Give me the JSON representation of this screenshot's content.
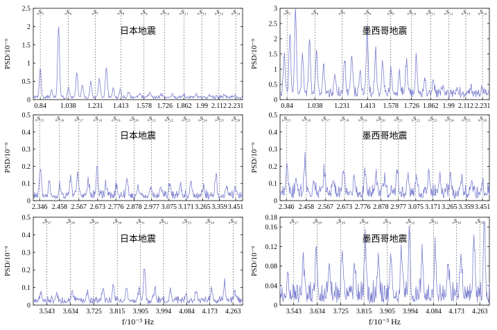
{
  "chart_data": [
    {
      "type": "line",
      "title": "日本地震",
      "ylabel": "PSD/10⁻⁹",
      "xlabel": "",
      "ylim": [
        0,
        2.5
      ],
      "yticks": [
        "0",
        "0.5",
        "1",
        "1.5",
        "2",
        "2.5"
      ],
      "xlim": [
        0.79,
        2.28
      ],
      "x_ticks": [
        0.84,
        1.038,
        1.231,
        1.413,
        1.578,
        1.726,
        1.862,
        1.99,
        2.112,
        2.231
      ],
      "x_tick_labels": [
        "0.84",
        "1.038",
        "1.231",
        "1.413",
        "1.578",
        "1.726",
        "1.862",
        "1.99",
        "2.112",
        "2.231"
      ],
      "modes": [
        "₀S₅",
        "₀S₆",
        "₀S₇",
        "₀S₈",
        "₀S₉",
        "₀S₁₀",
        "₀S₁₁",
        "₀S₁₂",
        "₀S₁₃",
        "₀S₁₄"
      ],
      "peaks": [
        [
          0.84,
          0.8
        ],
        [
          0.92,
          0.18
        ],
        [
          0.97,
          1.95
        ],
        [
          1.04,
          0.3
        ],
        [
          1.1,
          0.65
        ],
        [
          1.14,
          0.35
        ],
        [
          1.2,
          0.45
        ],
        [
          1.26,
          0.55
        ],
        [
          1.31,
          0.85
        ],
        [
          1.36,
          0.25
        ],
        [
          1.41,
          0.2
        ],
        [
          1.47,
          0.15
        ],
        [
          1.55,
          0.1
        ],
        [
          1.62,
          0.12
        ],
        [
          1.7,
          0.08
        ],
        [
          1.78,
          0.1
        ],
        [
          1.86,
          0.09
        ],
        [
          1.95,
          0.07
        ],
        [
          2.05,
          0.06
        ],
        [
          2.15,
          0.08
        ],
        [
          2.23,
          0.05
        ]
      ],
      "base": 0.05,
      "noise": 0.06
    },
    {
      "type": "line",
      "title": "墨西哥地震",
      "ylabel": "PSD/10⁻⁹",
      "xlabel": "",
      "ylim": [
        0,
        3
      ],
      "yticks": [
        "0",
        "0.5",
        "1",
        "1.5",
        "2",
        "2.5",
        "3"
      ],
      "xlim": [
        0.79,
        2.28
      ],
      "x_ticks": [
        0.84,
        1.038,
        1.231,
        1.413,
        1.578,
        1.726,
        1.862,
        1.99,
        2.112,
        2.231
      ],
      "x_tick_labels": [
        "0.84",
        "1.038",
        "1.231",
        "1.413",
        "1.578",
        "1.726",
        "1.862",
        "1.99",
        "2.112",
        "2.231"
      ],
      "modes": [
        "₀S₅",
        "₀S₆",
        "₀S₇",
        "₀S₈",
        "₀S₉",
        "₀S₁₀",
        "₀S₁₁",
        "₀S₁₂",
        "₀S₁₃",
        "₀S₁₄"
      ],
      "peaks": [
        [
          0.82,
          1.3
        ],
        [
          0.86,
          2.0
        ],
        [
          0.9,
          2.8
        ],
        [
          0.95,
          1.2
        ],
        [
          1.0,
          1.8
        ],
        [
          1.05,
          1.5
        ],
        [
          1.1,
          0.9
        ],
        [
          1.18,
          0.6
        ],
        [
          1.25,
          1.1
        ],
        [
          1.3,
          1.3
        ],
        [
          1.36,
          0.7
        ],
        [
          1.41,
          2.1
        ],
        [
          1.47,
          1.4
        ],
        [
          1.52,
          1.0
        ],
        [
          1.58,
          0.8
        ],
        [
          1.64,
          0.6
        ],
        [
          1.69,
          1.0
        ],
        [
          1.76,
          1.2
        ],
        [
          1.82,
          0.5
        ],
        [
          1.88,
          0.4
        ],
        [
          1.95,
          0.3
        ],
        [
          2.05,
          0.2
        ],
        [
          2.15,
          0.15
        ],
        [
          2.23,
          0.1
        ]
      ],
      "base": 0.15,
      "noise": 0.25
    },
    {
      "type": "line",
      "title": "日本地震",
      "ylabel": "PSD/10⁻⁹",
      "xlabel": "",
      "ylim": [
        0,
        0.5
      ],
      "yticks": [
        "0",
        "0.1",
        "0.2",
        "0.3",
        "0.4",
        "0.5"
      ],
      "xlim": [
        2.31,
        3.49
      ],
      "x_ticks": [
        2.346,
        2.458,
        2.567,
        2.673,
        2.776,
        2.878,
        2.977,
        3.075,
        3.171,
        3.265,
        3.359,
        3.451
      ],
      "x_tick_labels": [
        "2.346",
        "2.458",
        "2.567",
        "2.673",
        "2.776",
        "2.878",
        "2.977",
        "3.075",
        "3.171",
        "3.265",
        "3.359",
        "3.451"
      ],
      "modes": [
        "₀S₁₅",
        "₀S₁₆",
        "₀S₁₇",
        "₀S₁₈",
        "₀S₁₉",
        "₀S₂₀",
        "₀S₂₁",
        "₀S₂₂",
        "₀S₂₃",
        "₀S₂₄",
        "₀S₂₅",
        "₀S₂₆"
      ],
      "peaks": [
        [
          2.35,
          0.15
        ],
        [
          2.4,
          0.08
        ],
        [
          2.46,
          0.06
        ],
        [
          2.52,
          0.1
        ],
        [
          2.56,
          0.13
        ],
        [
          2.62,
          0.09
        ],
        [
          2.67,
          0.17
        ],
        [
          2.72,
          0.07
        ],
        [
          2.78,
          0.06
        ],
        [
          2.84,
          0.09
        ],
        [
          2.9,
          0.05
        ],
        [
          2.97,
          0.06
        ],
        [
          3.03,
          0.05
        ],
        [
          3.08,
          0.08
        ],
        [
          3.14,
          0.06
        ],
        [
          3.2,
          0.07
        ],
        [
          3.27,
          0.05
        ],
        [
          3.34,
          0.12
        ],
        [
          3.4,
          0.05
        ],
        [
          3.45,
          0.04
        ]
      ],
      "base": 0.02,
      "noise": 0.04
    },
    {
      "type": "line",
      "title": "墨西哥地震",
      "ylabel": "PSD/10⁻⁹",
      "xlabel": "",
      "ylim": [
        0,
        0.5
      ],
      "yticks": [
        "0",
        "0.1",
        "0.2",
        "0.3",
        "0.4",
        "0.5"
      ],
      "xlim": [
        2.31,
        3.49
      ],
      "x_ticks": [
        2.346,
        2.458,
        2.567,
        2.673,
        2.776,
        2.878,
        2.977,
        3.075,
        3.171,
        3.265,
        3.359,
        3.451
      ],
      "x_tick_labels": [
        "2.346",
        "2.458",
        "2.567",
        "2.673",
        "2.776",
        "2.878",
        "2.977",
        "3.075",
        "3.171",
        "3.265",
        "3.359",
        "3.451"
      ],
      "modes": [
        "₀S₁₅",
        "₀S₁₆",
        "₀S₁₇",
        "₀S₁₈",
        "₀S₁₉",
        "₀S₂₀",
        "₀S₂₁",
        "₀S₂₂",
        "₀S₂₃",
        "₀S₂₄",
        "₀S₂₅",
        "₀S₂₆"
      ],
      "peaks": [
        [
          2.35,
          0.17
        ],
        [
          2.4,
          0.1
        ],
        [
          2.45,
          0.18
        ],
        [
          2.5,
          0.09
        ],
        [
          2.56,
          0.12
        ],
        [
          2.61,
          0.1
        ],
        [
          2.67,
          0.14
        ],
        [
          2.73,
          0.08
        ],
        [
          2.79,
          0.11
        ],
        [
          2.85,
          0.1
        ],
        [
          2.9,
          0.08
        ],
        [
          2.97,
          0.12
        ],
        [
          3.03,
          0.09
        ],
        [
          3.08,
          0.1
        ],
        [
          3.15,
          0.13
        ],
        [
          3.21,
          0.08
        ],
        [
          3.27,
          0.11
        ],
        [
          3.33,
          0.09
        ],
        [
          3.39,
          0.08
        ],
        [
          3.45,
          0.07
        ]
      ],
      "base": 0.03,
      "noise": 0.07
    },
    {
      "type": "line",
      "title": "日本地震",
      "ylabel": "PSD/10⁻⁹",
      "xlabel": "f/10⁻³ Hz",
      "ylim": [
        0,
        0.5
      ],
      "yticks": [
        "0",
        "0.1",
        "0.2",
        "0.3",
        "0.4",
        "0.5"
      ],
      "xlim": [
        3.49,
        4.3
      ],
      "x_ticks": [
        3.543,
        3.634,
        3.725,
        3.815,
        3.905,
        3.994,
        4.084,
        4.173,
        4.263
      ],
      "x_tick_labels": [
        "3.543",
        "3.634",
        "3.725",
        "3.815",
        "3.905",
        "3.994",
        "4.084",
        "4.173",
        "4.263"
      ],
      "modes": [
        "₀S₂₇",
        "₀S₂₈",
        "₀S₂₉",
        "₀S₃₀",
        "₀S₃₁",
        "₀S₃₂",
        "₀S₃₃",
        "₀S₃₄",
        "₀S₃₅"
      ],
      "peaks": [
        [
          3.52,
          0.05
        ],
        [
          3.58,
          0.04
        ],
        [
          3.64,
          0.06
        ],
        [
          3.7,
          0.05
        ],
        [
          3.76,
          0.07
        ],
        [
          3.8,
          0.1
        ],
        [
          3.85,
          0.08
        ],
        [
          3.9,
          0.06
        ],
        [
          3.92,
          0.19
        ],
        [
          3.96,
          0.07
        ],
        [
          4.02,
          0.06
        ],
        [
          4.08,
          0.04
        ],
        [
          4.12,
          0.05
        ],
        [
          4.18,
          0.07
        ],
        [
          4.23,
          0.1
        ],
        [
          4.27,
          0.06
        ]
      ],
      "base": 0.02,
      "noise": 0.03
    },
    {
      "type": "line",
      "title": "墨西哥地震",
      "ylabel": "PSD/10⁻⁹",
      "xlabel": "f/10⁻³ Hz",
      "ylim": [
        0,
        0.18
      ],
      "yticks": [
        "0",
        "0.04",
        "0.08",
        "0.12",
        "0.16",
        "0.18"
      ],
      "xlim": [
        3.49,
        4.3
      ],
      "x_ticks": [
        3.543,
        3.634,
        3.725,
        3.815,
        3.905,
        3.994,
        4.084,
        4.173,
        4.263
      ],
      "x_tick_labels": [
        "3.543",
        "3.634",
        "3.725",
        "3.815",
        "3.905",
        "3.994",
        "4.084",
        "4.173",
        "4.263"
      ],
      "modes": [
        "₀S₂₇",
        "₀S₂₈",
        "₀S₂₉",
        "₀S₃₀",
        "₀S₃₁",
        "₀S₃₂",
        "₀S₃₃",
        "₀S₃₄",
        "₀S₃₅"
      ],
      "peaks": [
        [
          3.52,
          0.03
        ],
        [
          3.58,
          0.06
        ],
        [
          3.63,
          0.1
        ],
        [
          3.68,
          0.07
        ],
        [
          3.73,
          0.08
        ],
        [
          3.78,
          0.06
        ],
        [
          3.82,
          0.11
        ],
        [
          3.87,
          0.08
        ],
        [
          3.92,
          0.07
        ],
        [
          3.96,
          0.09
        ],
        [
          3.99,
          0.13
        ],
        [
          4.04,
          0.08
        ],
        [
          4.09,
          0.1
        ],
        [
          4.14,
          0.07
        ],
        [
          4.19,
          0.09
        ],
        [
          4.24,
          0.12
        ],
        [
          4.28,
          0.16
        ]
      ],
      "base": 0.01,
      "noise": 0.04
    }
  ]
}
